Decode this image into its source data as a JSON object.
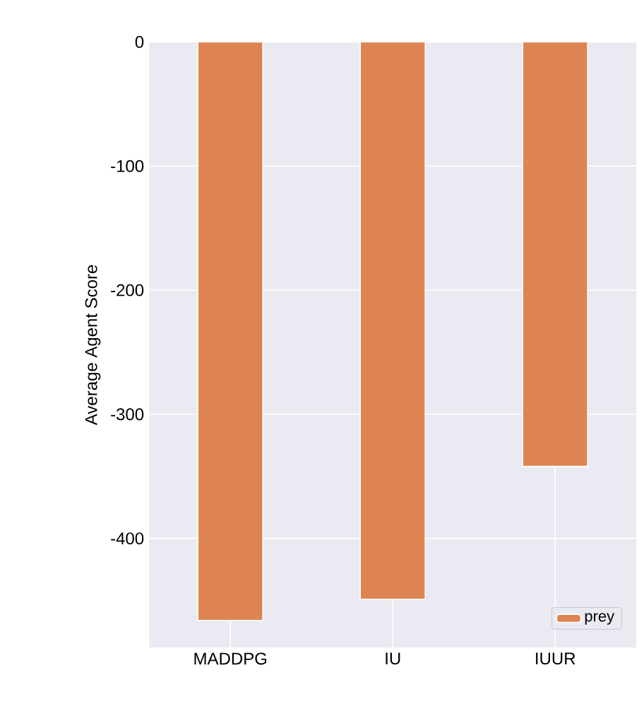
{
  "chart_data": {
    "type": "bar",
    "ylabel": "Average Agent Score",
    "categories": [
      "MADDPG",
      "IU",
      "IUUR"
    ],
    "series": [
      {
        "name": "prey",
        "color": "#dd8452",
        "values": [
          -466,
          -449,
          -342
        ]
      }
    ],
    "ylim": [
      -488,
      0
    ],
    "yticks": [
      -400,
      -300,
      -200,
      -100,
      0
    ],
    "grid": true,
    "legend": "bottom right"
  }
}
